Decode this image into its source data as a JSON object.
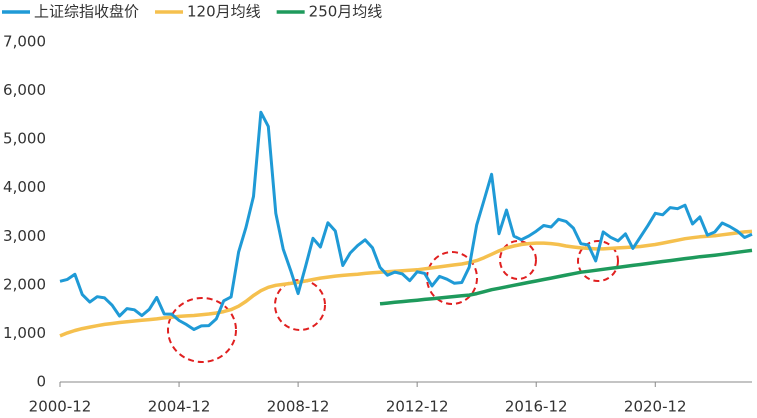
{
  "chart_data": {
    "type": "line",
    "categories": [
      "2000-12",
      "2001-03",
      "2001-06",
      "2001-09",
      "2001-12",
      "2002-03",
      "2002-06",
      "2002-09",
      "2002-12",
      "2003-03",
      "2003-06",
      "2003-09",
      "2003-12",
      "2004-03",
      "2004-06",
      "2004-09",
      "2004-12",
      "2005-03",
      "2005-06",
      "2005-09",
      "2005-12",
      "2006-03",
      "2006-06",
      "2006-09",
      "2006-12",
      "2007-03",
      "2007-06",
      "2007-09",
      "2007-12",
      "2008-03",
      "2008-06",
      "2008-09",
      "2008-12",
      "2009-03",
      "2009-06",
      "2009-09",
      "2009-12",
      "2010-03",
      "2010-06",
      "2010-09",
      "2010-12",
      "2011-03",
      "2011-06",
      "2011-09",
      "2011-12",
      "2012-03",
      "2012-06",
      "2012-09",
      "2012-12",
      "2013-03",
      "2013-06",
      "2013-09",
      "2013-12",
      "2014-03",
      "2014-06",
      "2014-09",
      "2014-12",
      "2015-03",
      "2015-06",
      "2015-09",
      "2015-12",
      "2016-03",
      "2016-06",
      "2016-09",
      "2016-12",
      "2017-03",
      "2017-06",
      "2017-09",
      "2017-12",
      "2018-03",
      "2018-06",
      "2018-09",
      "2018-12",
      "2019-03",
      "2019-06",
      "2019-09",
      "2019-12",
      "2020-03",
      "2020-06",
      "2020-09",
      "2020-12",
      "2021-03",
      "2021-06",
      "2021-09",
      "2021-12",
      "2022-03",
      "2022-06",
      "2022-09",
      "2022-12",
      "2023-03",
      "2023-06",
      "2023-09",
      "2023-12",
      "2024-03"
    ],
    "xticks": [
      "2000-12",
      "2004-12",
      "2008-12",
      "2012-12",
      "2016-12",
      "2020-12"
    ],
    "series": [
      {
        "name": "上证综指收盘价",
        "color": "#1f9ad6",
        "values": [
          2073,
          2112,
          2218,
          1800,
          1646,
          1757,
          1732,
          1581,
          1358,
          1511,
          1487,
          1367,
          1497,
          1742,
          1400,
          1397,
          1267,
          1181,
          1081,
          1155,
          1161,
          1299,
          1672,
          1753,
          2675,
          3184,
          3821,
          5552,
          5262,
          3473,
          2736,
          2294,
          1821,
          2373,
          2959,
          2779,
          3277,
          3109,
          2398,
          2656,
          2808,
          2928,
          2762,
          2359,
          2199,
          2262,
          2225,
          2086,
          2269,
          2236,
          1979,
          2175,
          2116,
          2033,
          2048,
          2364,
          3235,
          3748,
          4277,
          3053,
          3539,
          3004,
          2930,
          3005,
          3104,
          3223,
          3192,
          3349,
          3307,
          3169,
          2847,
          2821,
          2494,
          3091,
          2979,
          2905,
          3050,
          2750,
          2985,
          3218,
          3473,
          3442,
          3591,
          3568,
          3640,
          3252,
          3399,
          3024,
          3089,
          3273,
          3202,
          3110,
          2975,
          3041
        ]
      },
      {
        "name": "120月均线",
        "color": "#f5c04e",
        "values": [
          950,
          1010,
          1060,
          1100,
          1130,
          1160,
          1185,
          1205,
          1225,
          1240,
          1255,
          1270,
          1285,
          1300,
          1320,
          1335,
          1350,
          1360,
          1370,
          1385,
          1400,
          1420,
          1450,
          1490,
          1560,
          1660,
          1780,
          1880,
          1950,
          1990,
          2010,
          2030,
          2050,
          2080,
          2110,
          2140,
          2160,
          2180,
          2195,
          2210,
          2220,
          2235,
          2250,
          2260,
          2270,
          2280,
          2290,
          2300,
          2310,
          2330,
          2350,
          2370,
          2390,
          2410,
          2430,
          2460,
          2500,
          2560,
          2630,
          2700,
          2760,
          2800,
          2830,
          2850,
          2860,
          2860,
          2850,
          2830,
          2800,
          2780,
          2760,
          2750,
          2740,
          2740,
          2750,
          2760,
          2770,
          2780,
          2790,
          2810,
          2830,
          2860,
          2890,
          2920,
          2950,
          2970,
          2990,
          3000,
          3010,
          3030,
          3050,
          3070,
          3090,
          3100
        ]
      },
      {
        "name": "250月均线",
        "color": "#1e9a5c",
        "values": [
          null,
          null,
          null,
          null,
          null,
          null,
          null,
          null,
          null,
          null,
          null,
          null,
          null,
          null,
          null,
          null,
          null,
          null,
          null,
          null,
          null,
          null,
          null,
          null,
          null,
          null,
          null,
          null,
          null,
          null,
          null,
          null,
          null,
          null,
          null,
          null,
          null,
          null,
          null,
          null,
          null,
          null,
          null,
          1610,
          1625,
          1640,
          1655,
          1670,
          1685,
          1700,
          1715,
          1730,
          1745,
          1760,
          1775,
          1790,
          1820,
          1860,
          1900,
          1930,
          1960,
          1990,
          2020,
          2050,
          2080,
          2110,
          2140,
          2170,
          2200,
          2230,
          2260,
          2280,
          2300,
          2320,
          2340,
          2360,
          2380,
          2400,
          2420,
          2440,
          2460,
          2480,
          2500,
          2520,
          2540,
          2560,
          2580,
          2595,
          2610,
          2630,
          2650,
          2670,
          2690,
          2710
        ]
      }
    ],
    "ylim": [
      0,
      7000
    ],
    "yticks": [
      0,
      {
        "value": 1000,
        "label": "1,000"
      },
      {
        "value": 2000,
        "label": "2,000"
      },
      {
        "value": 3000,
        "label": "3,000"
      },
      {
        "value": 4000,
        "label": "4,000"
      },
      {
        "value": 5000,
        "label": "5,000"
      },
      {
        "value": 6000,
        "label": "6,000"
      },
      {
        "value": 7000,
        "label": "7,000"
      }
    ],
    "grid": false
  }
}
